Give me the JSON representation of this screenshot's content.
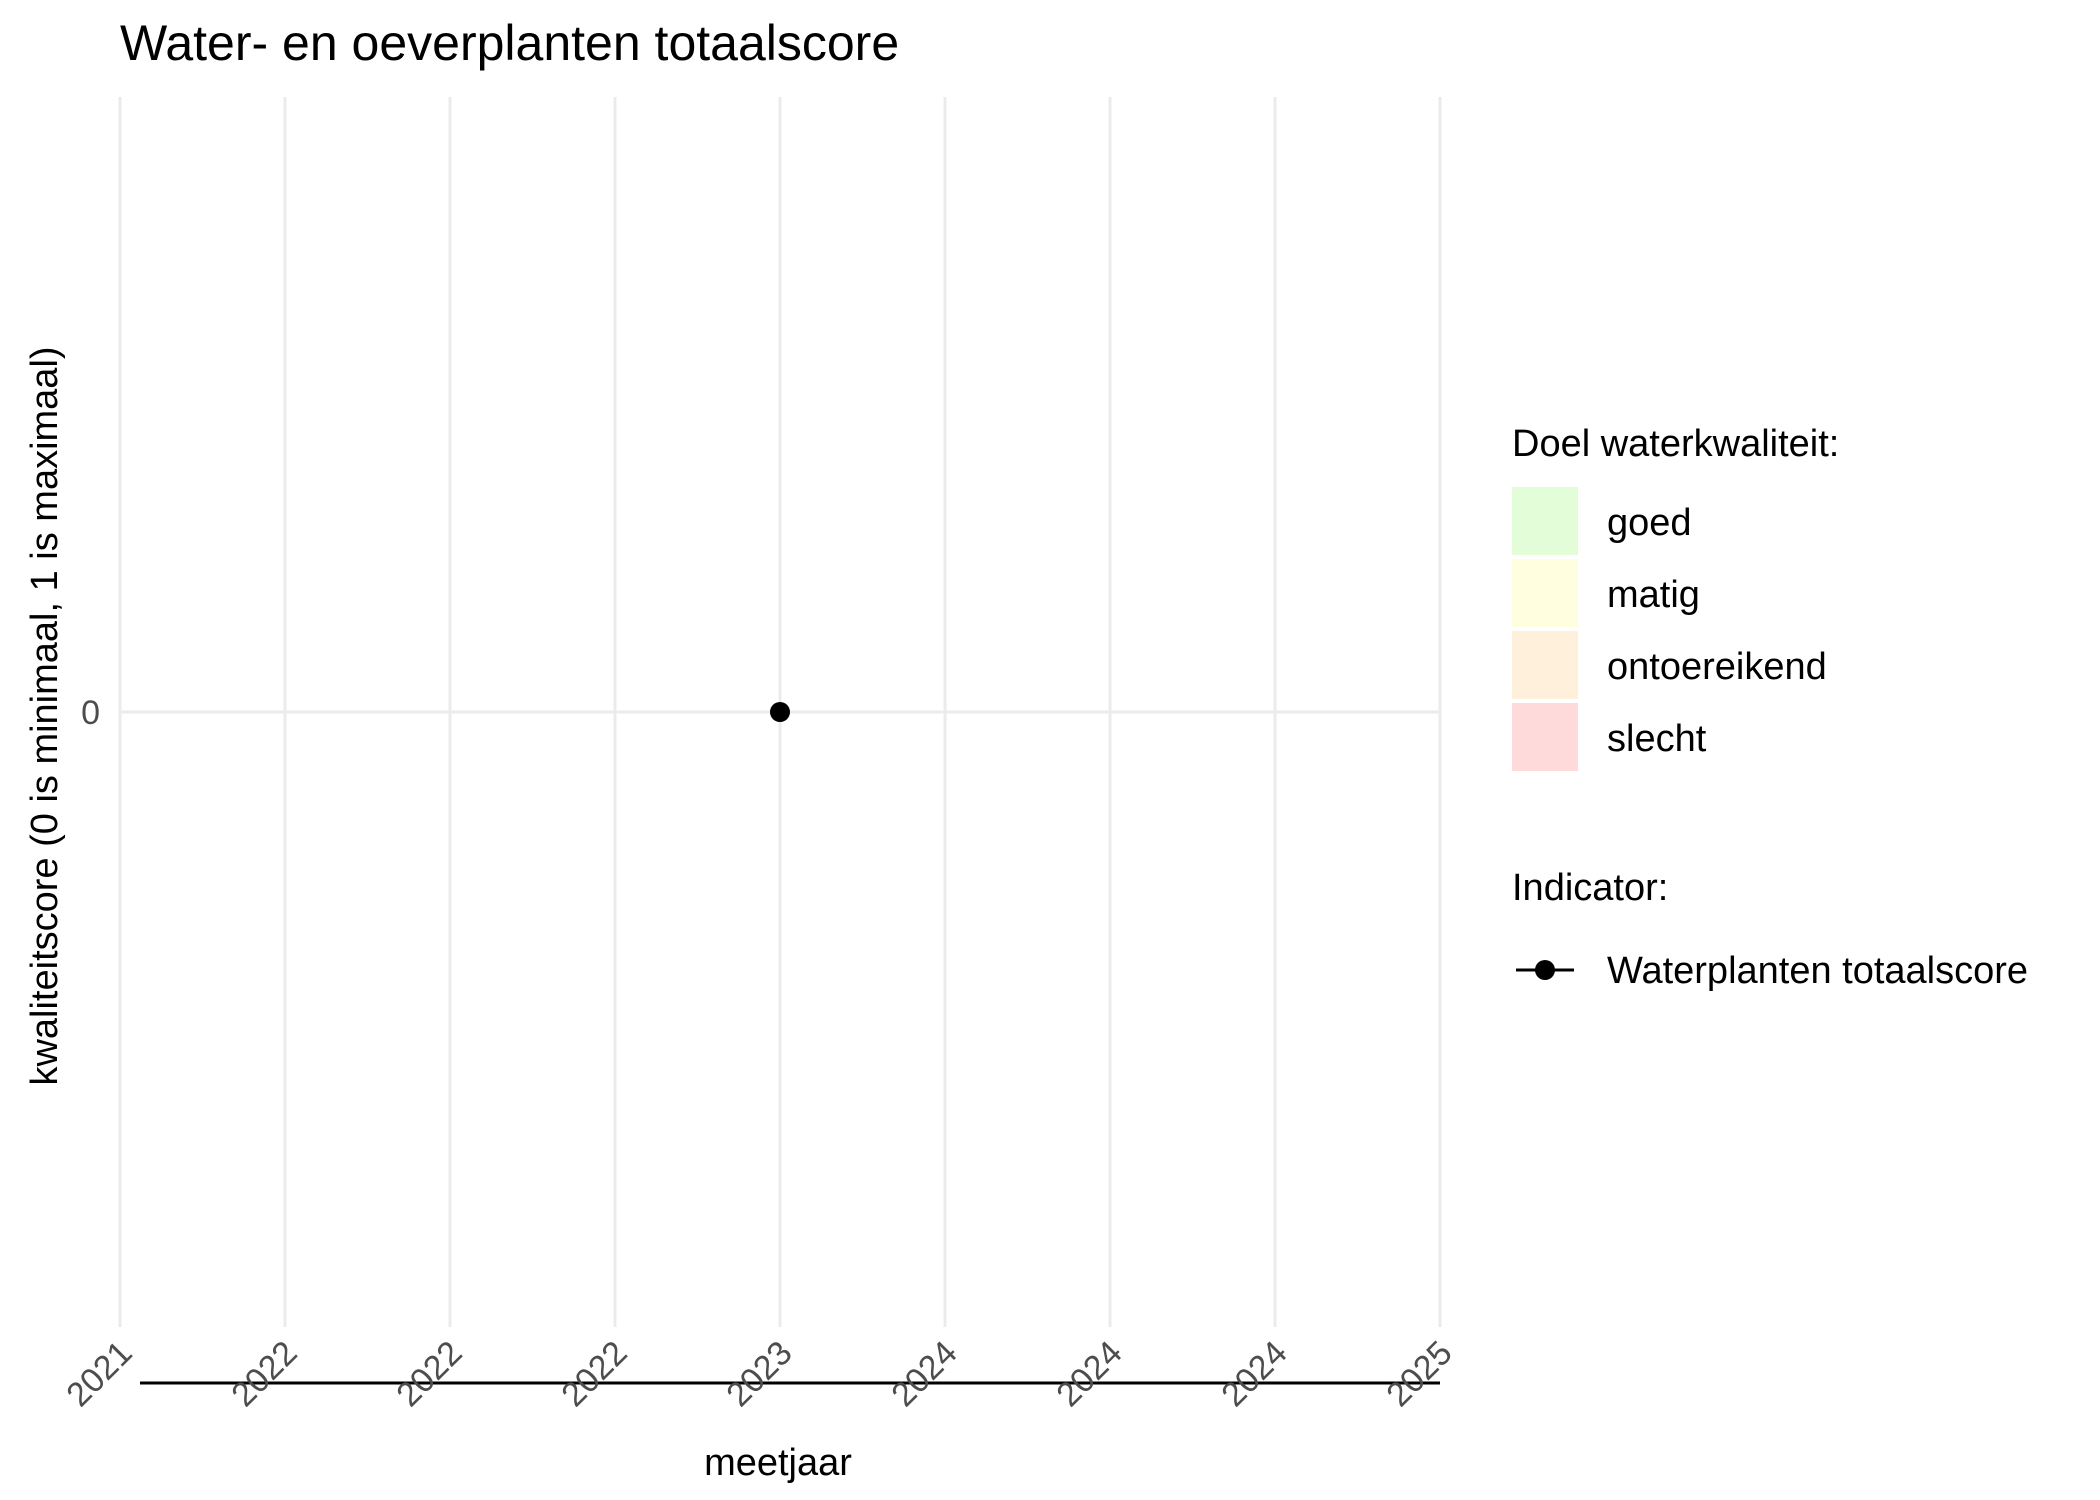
{
  "chart_data": {
    "type": "scatter",
    "title": "Water- en oeverplanten totaalscore",
    "xlabel": "meetjaar",
    "ylabel": "kwaliteitscore (0 is minimaal, 1 is maximaal)",
    "x_tick_labels": [
      "2021",
      "2022",
      "2022",
      "2022",
      "2023",
      "2024",
      "2024",
      "2024",
      "2025"
    ],
    "x_tick_values": [
      2021.0,
      2021.5,
      2022.0,
      2022.5,
      2023.0,
      2023.5,
      2024.0,
      2024.5,
      2025.0
    ],
    "xlim": [
      2021.0,
      2025.0
    ],
    "y_tick_labels": [
      "0"
    ],
    "y_tick_values": [
      0
    ],
    "ylim": [
      -1,
      1
    ],
    "grid": true,
    "series": [
      {
        "name": "Waterplanten totaalscore",
        "x": [
          2023.0
        ],
        "y": [
          0
        ],
        "color": "#000000"
      }
    ],
    "legend_fill": {
      "title": "Doel waterkwaliteit:",
      "items": [
        {
          "label": "goed",
          "color": "#E2FDD8"
        },
        {
          "label": "matig",
          "color": "#FFFFE0"
        },
        {
          "label": "ontoereikend",
          "color": "#FFF0DC"
        },
        {
          "label": "slecht",
          "color": "#FFDADA"
        }
      ]
    },
    "legend_indicator": {
      "title": "Indicator:",
      "items": [
        {
          "label": "Waterplanten totaalscore",
          "color": "#000000"
        }
      ]
    },
    "legend_position": "right"
  }
}
